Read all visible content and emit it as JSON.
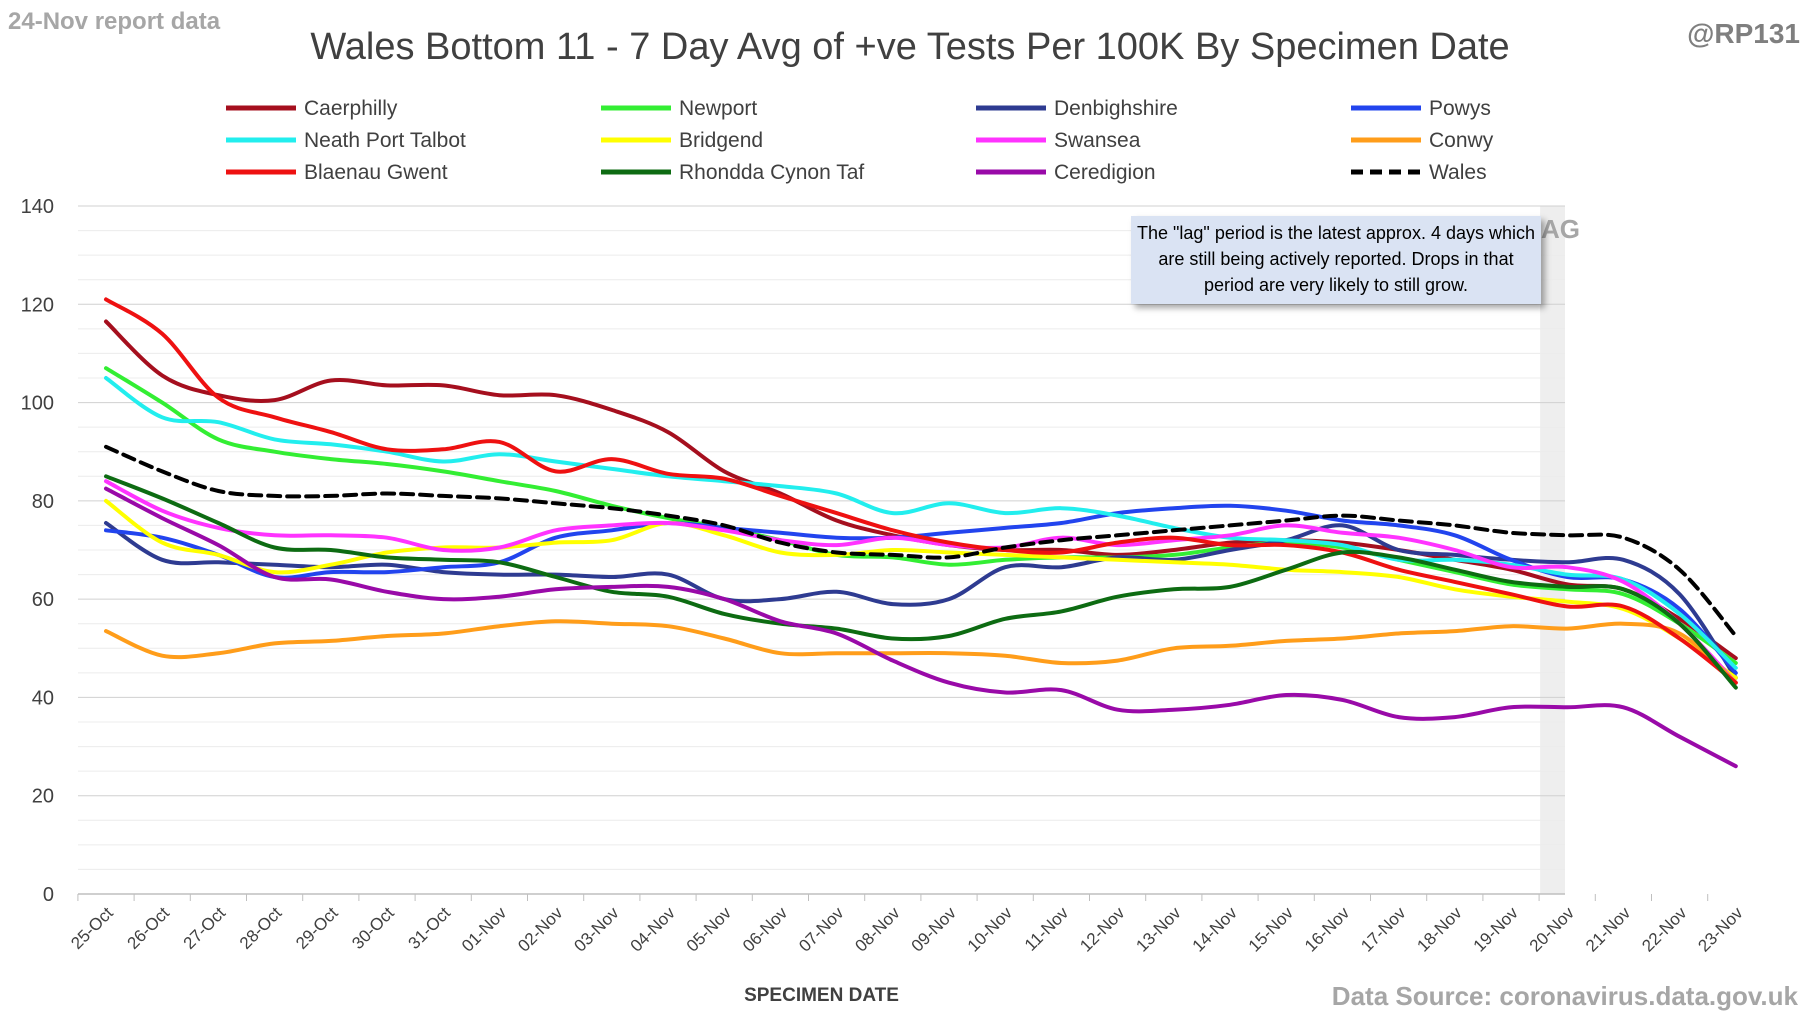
{
  "header": {
    "report_tag": "24-Nov report data",
    "handle": "@RP131",
    "source": "Data Source: coronavirus.data.gov.uk"
  },
  "annotation": {
    "note": "The \"lag\" period is the latest approx. 4 days which are still being actively reported. Drops in that period are very likely to still grow.",
    "lag_label": "LAG"
  },
  "chart_data": {
    "type": "line",
    "title": "Wales Bottom 11 - 7 Day Avg of +ve Tests Per 100K By Specimen Date",
    "xlabel": "SPECIMEN DATE",
    "ylabel": "",
    "ylim": [
      0,
      140
    ],
    "yticks": [
      0,
      20,
      40,
      60,
      80,
      100,
      120,
      140
    ],
    "grid": true,
    "legend_position": "top",
    "lag_region": [
      "20-Nov",
      "23-Nov"
    ],
    "categories": [
      "25-Oct",
      "26-Oct",
      "27-Oct",
      "28-Oct",
      "29-Oct",
      "30-Oct",
      "31-Oct",
      "01-Nov",
      "02-Nov",
      "03-Nov",
      "04-Nov",
      "05-Nov",
      "06-Nov",
      "07-Nov",
      "08-Nov",
      "09-Nov",
      "10-Nov",
      "11-Nov",
      "12-Nov",
      "13-Nov",
      "14-Nov",
      "15-Nov",
      "16-Nov",
      "17-Nov",
      "18-Nov",
      "19-Nov",
      "20-Nov",
      "21-Nov",
      "22-Nov",
      "23-Nov"
    ],
    "series": [
      {
        "name": "Caerphilly",
        "color": "#a50f1e",
        "dashed": false,
        "values": [
          116.5,
          105.5,
          101.5,
          100.5,
          104.5,
          103.5,
          103.5,
          101.5,
          101.5,
          98.5,
          94,
          86,
          81.5,
          76,
          73,
          71,
          70,
          70,
          69,
          70,
          71.5,
          72,
          71.5,
          70,
          68,
          66,
          63,
          62,
          56,
          48
        ]
      },
      {
        "name": "Newport",
        "color": "#33ee33",
        "dashed": false,
        "values": [
          107,
          100,
          92.5,
          90,
          88.5,
          87.5,
          86,
          84,
          82,
          79,
          76.5,
          74.5,
          72,
          69,
          68.5,
          67,
          68,
          68.5,
          68.5,
          69,
          70.5,
          71.5,
          70.5,
          68,
          65.5,
          63,
          62,
          61,
          55,
          47
        ]
      },
      {
        "name": "Denbighshire",
        "color": "#2e3b91",
        "dashed": false,
        "values": [
          75.5,
          68,
          67.5,
          67,
          66.5,
          67,
          65.5,
          65,
          65,
          64.5,
          65,
          60,
          60,
          61.5,
          59,
          60,
          66.5,
          66.5,
          68.5,
          68,
          70,
          72,
          75,
          70,
          69,
          68,
          67.5,
          68,
          61,
          44
        ]
      },
      {
        "name": "Powys",
        "color": "#2244ee",
        "dashed": false,
        "values": [
          74,
          72.5,
          69,
          64.5,
          65.5,
          65.5,
          66.5,
          67.5,
          72.5,
          74,
          75.5,
          74.5,
          73.5,
          72.5,
          72.5,
          73.5,
          74.5,
          75.5,
          77.5,
          78.5,
          79,
          78,
          76,
          75,
          73,
          68,
          64.5,
          64,
          58,
          45
        ]
      },
      {
        "name": "Neath Port Talbot",
        "color": "#22eeee",
        "dashed": false,
        "values": [
          105,
          97,
          96,
          92.5,
          91.5,
          90,
          88,
          89.5,
          88,
          86.5,
          85,
          84,
          83,
          81.5,
          77.5,
          79.5,
          77.5,
          78.5,
          77,
          74.5,
          72.5,
          72,
          71,
          68,
          68,
          67,
          65,
          64,
          57,
          46
        ]
      },
      {
        "name": "Bridgend",
        "color": "#ffff00",
        "dashed": false,
        "values": [
          80,
          71.5,
          69,
          65.5,
          67,
          69.5,
          70.5,
          70.5,
          71.5,
          72,
          75.5,
          73,
          69.5,
          69,
          70,
          69.5,
          69,
          68.5,
          68,
          67.5,
          67,
          66,
          65.5,
          64.5,
          62,
          60.5,
          59.5,
          58,
          52,
          44
        ]
      },
      {
        "name": "Swansea",
        "color": "#ff33ff",
        "dashed": false,
        "values": [
          84,
          78,
          74.5,
          73,
          73,
          72.5,
          70,
          70.5,
          74,
          75,
          75.5,
          74,
          72,
          71,
          72.5,
          71,
          70.5,
          72.5,
          71,
          72,
          73,
          75,
          73.5,
          72.5,
          70,
          66.5,
          66.5,
          63.5,
          55,
          43
        ]
      },
      {
        "name": "Conwy",
        "color": "#ff9d1a",
        "dashed": false,
        "values": [
          53.5,
          48.5,
          49,
          51,
          51.5,
          52.5,
          53,
          54.5,
          55.5,
          55,
          54.5,
          52,
          49,
          49,
          49,
          49,
          48.5,
          47,
          47.5,
          50,
          50.5,
          51.5,
          52,
          53,
          53.5,
          54.5,
          54,
          55,
          53,
          43
        ]
      },
      {
        "name": "Blaenau Gwent",
        "color": "#ee1111",
        "dashed": false,
        "values": [
          121,
          114,
          101,
          97,
          94,
          90.5,
          90.5,
          92,
          86,
          88.5,
          85.5,
          84.5,
          81,
          77.5,
          74,
          71.5,
          70,
          69.5,
          71.5,
          72.5,
          71,
          71,
          69.5,
          66,
          63.5,
          61,
          58.5,
          58.5,
          52,
          43
        ]
      },
      {
        "name": "Rhondda Cynon Taf",
        "color": "#0d6b12",
        "dashed": false,
        "values": [
          85,
          80.5,
          75.5,
          70.5,
          70,
          68.5,
          68,
          67.5,
          64.5,
          61.5,
          60.5,
          57,
          55,
          54,
          52,
          52.5,
          56,
          57.5,
          60.5,
          62,
          62.5,
          66,
          69.5,
          68.5,
          66,
          63.5,
          62.5,
          62,
          55,
          42
        ]
      },
      {
        "name": "Ceredigion",
        "color": "#990aa8",
        "dashed": false,
        "values": [
          82.5,
          76.5,
          71,
          64.5,
          64,
          61.5,
          60,
          60.5,
          62,
          62.5,
          62.5,
          60,
          55.5,
          53,
          47.5,
          43,
          41,
          41.5,
          37.5,
          37.5,
          38.5,
          40.5,
          39.5,
          36,
          36,
          38,
          38,
          38,
          32,
          26
        ]
      },
      {
        "name": "Wales",
        "color": "#000000",
        "dashed": true,
        "values": [
          91,
          86,
          82,
          81,
          81,
          81.5,
          81,
          80.5,
          79.5,
          78.5,
          77,
          75,
          71.5,
          69.5,
          69,
          68.5,
          70.5,
          72,
          73,
          74,
          75,
          76,
          77,
          76,
          75,
          73.5,
          73,
          72.5,
          66,
          52.5
        ]
      }
    ]
  }
}
